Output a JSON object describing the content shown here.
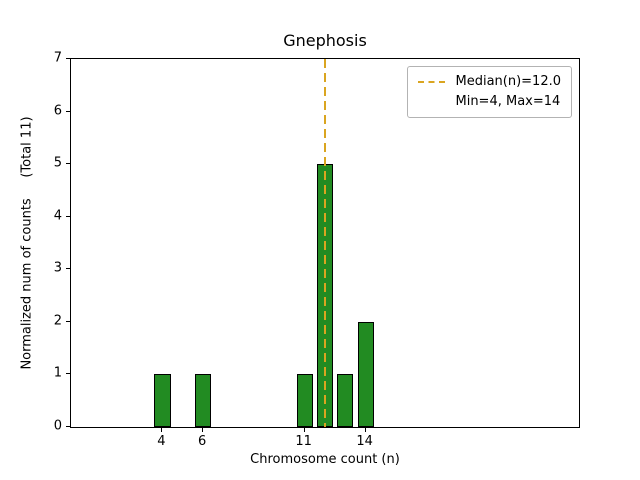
{
  "chart_data": {
    "type": "bar",
    "title": "Gnephosis",
    "xlabel": "Chromosome count (n)",
    "ylabel": "Normalized num of counts     (Total 11)",
    "x": [
      4,
      6,
      11,
      12,
      13,
      14
    ],
    "values": [
      1,
      1,
      1,
      5,
      1,
      2
    ],
    "total": 11,
    "median": 12.0,
    "min": 4,
    "max": 14,
    "bar_width": 0.8,
    "xlim": [
      -0.5,
      24.5
    ],
    "ylim": [
      0,
      7
    ],
    "xticks": [
      4,
      6,
      11,
      14
    ],
    "yticks": [
      0,
      1,
      2,
      3,
      4,
      5,
      6,
      7
    ],
    "grid": false,
    "legend_position": "upper right",
    "bar_color": "#228B22",
    "bar_edge_color": "#000000",
    "median_line_color": "#DAA520",
    "legend": [
      "Median(n)=12.0",
      "Min=4, Max=14"
    ]
  }
}
